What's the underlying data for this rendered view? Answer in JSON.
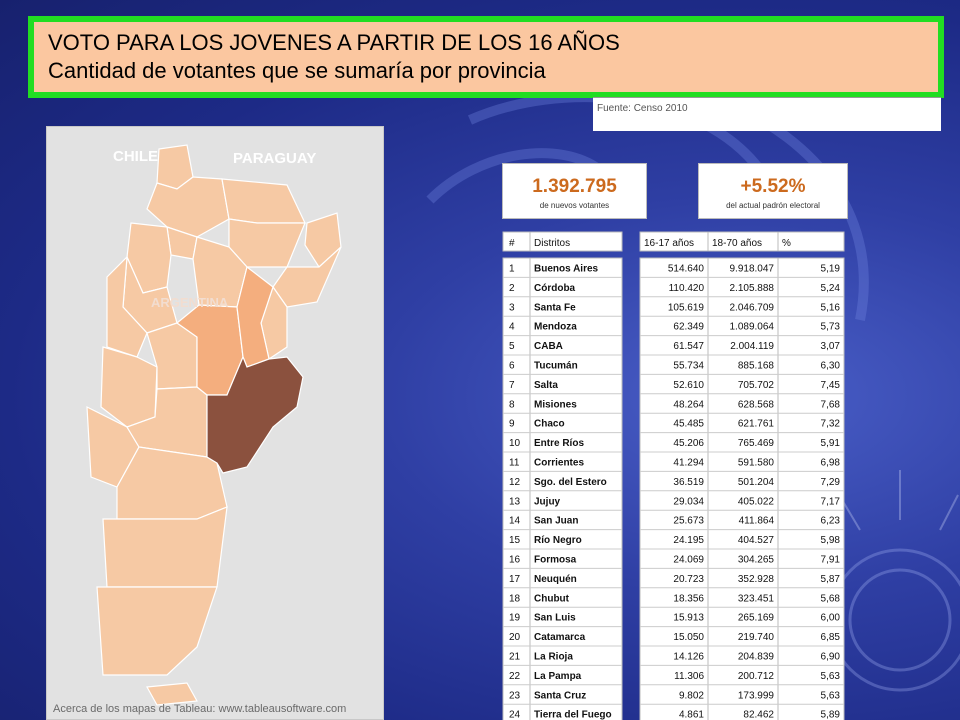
{
  "header": {
    "title": "VOTO PARA LOS JOVENES A PARTIR DE LOS 16 AÑOS",
    "subtitle": "Cantidad de votantes que se sumaría por provincia"
  },
  "source": {
    "label": "Fuente: Censo 2010"
  },
  "map": {
    "labels": {
      "chile": "CHILE",
      "paraguay": "PARAGUAY",
      "argentina": "ARGENTINA"
    },
    "credit": "Acerca de los mapas de Tableau: www.tableausoftware.com"
  },
  "kpis": {
    "new_voters": {
      "value": "1.392.795",
      "label": "de nuevos votantes"
    },
    "increase": {
      "value": "+5.52%",
      "label": "del actual padrón electoral"
    }
  },
  "colors": {
    "map_light": "#f6c9a4",
    "map_medium": "#f4ae7e",
    "map_dark": "#8b513e",
    "title_background": "#fbc7a0",
    "title_border": "#22dd22",
    "kpi_value": "#cc6a1e"
  },
  "chart_data": {
    "type": "table",
    "columns": [
      "#",
      "Distritos",
      "16-17 años",
      "18-70 años",
      "%"
    ],
    "rows": [
      [
        "1",
        "Buenos Aires",
        "514.640",
        "9.918.047",
        "5,19"
      ],
      [
        "2",
        "Córdoba",
        "110.420",
        "2.105.888",
        "5,24"
      ],
      [
        "3",
        "Santa Fe",
        "105.619",
        "2.046.709",
        "5,16"
      ],
      [
        "4",
        "Mendoza",
        "62.349",
        "1.089.064",
        "5,73"
      ],
      [
        "5",
        "CABA",
        "61.547",
        "2.004.119",
        "3,07"
      ],
      [
        "6",
        "Tucumán",
        "55.734",
        "885.168",
        "6,30"
      ],
      [
        "7",
        "Salta",
        "52.610",
        "705.702",
        "7,45"
      ],
      [
        "8",
        "Misiones",
        "48.264",
        "628.568",
        "7,68"
      ],
      [
        "9",
        "Chaco",
        "45.485",
        "621.761",
        "7,32"
      ],
      [
        "10",
        "Entre Ríos",
        "45.206",
        "765.469",
        "5,91"
      ],
      [
        "11",
        "Corrientes",
        "41.294",
        "591.580",
        "6,98"
      ],
      [
        "12",
        "Sgo. del Estero",
        "36.519",
        "501.204",
        "7,29"
      ],
      [
        "13",
        "Jujuy",
        "29.034",
        "405.022",
        "7,17"
      ],
      [
        "14",
        "San Juan",
        "25.673",
        "411.864",
        "6,23"
      ],
      [
        "15",
        "Río Negro",
        "24.195",
        "404.527",
        "5,98"
      ],
      [
        "16",
        "Formosa",
        "24.069",
        "304.265",
        "7,91"
      ],
      [
        "17",
        "Neuquén",
        "20.723",
        "352.928",
        "5,87"
      ],
      [
        "18",
        "Chubut",
        "18.356",
        "323.451",
        "5,68"
      ],
      [
        "19",
        "San Luis",
        "15.913",
        "265.169",
        "6,00"
      ],
      [
        "20",
        "Catamarca",
        "15.050",
        "219.740",
        "6,85"
      ],
      [
        "21",
        "La Rioja",
        "14.126",
        "204.839",
        "6,90"
      ],
      [
        "22",
        "La Pampa",
        "11.306",
        "200.712",
        "5,63"
      ],
      [
        "23",
        "Santa Cruz",
        "9.802",
        "173.999",
        "5,63"
      ],
      [
        "24",
        "Tierra del Fuego",
        "4.861",
        "82.462",
        "5,89"
      ]
    ]
  }
}
